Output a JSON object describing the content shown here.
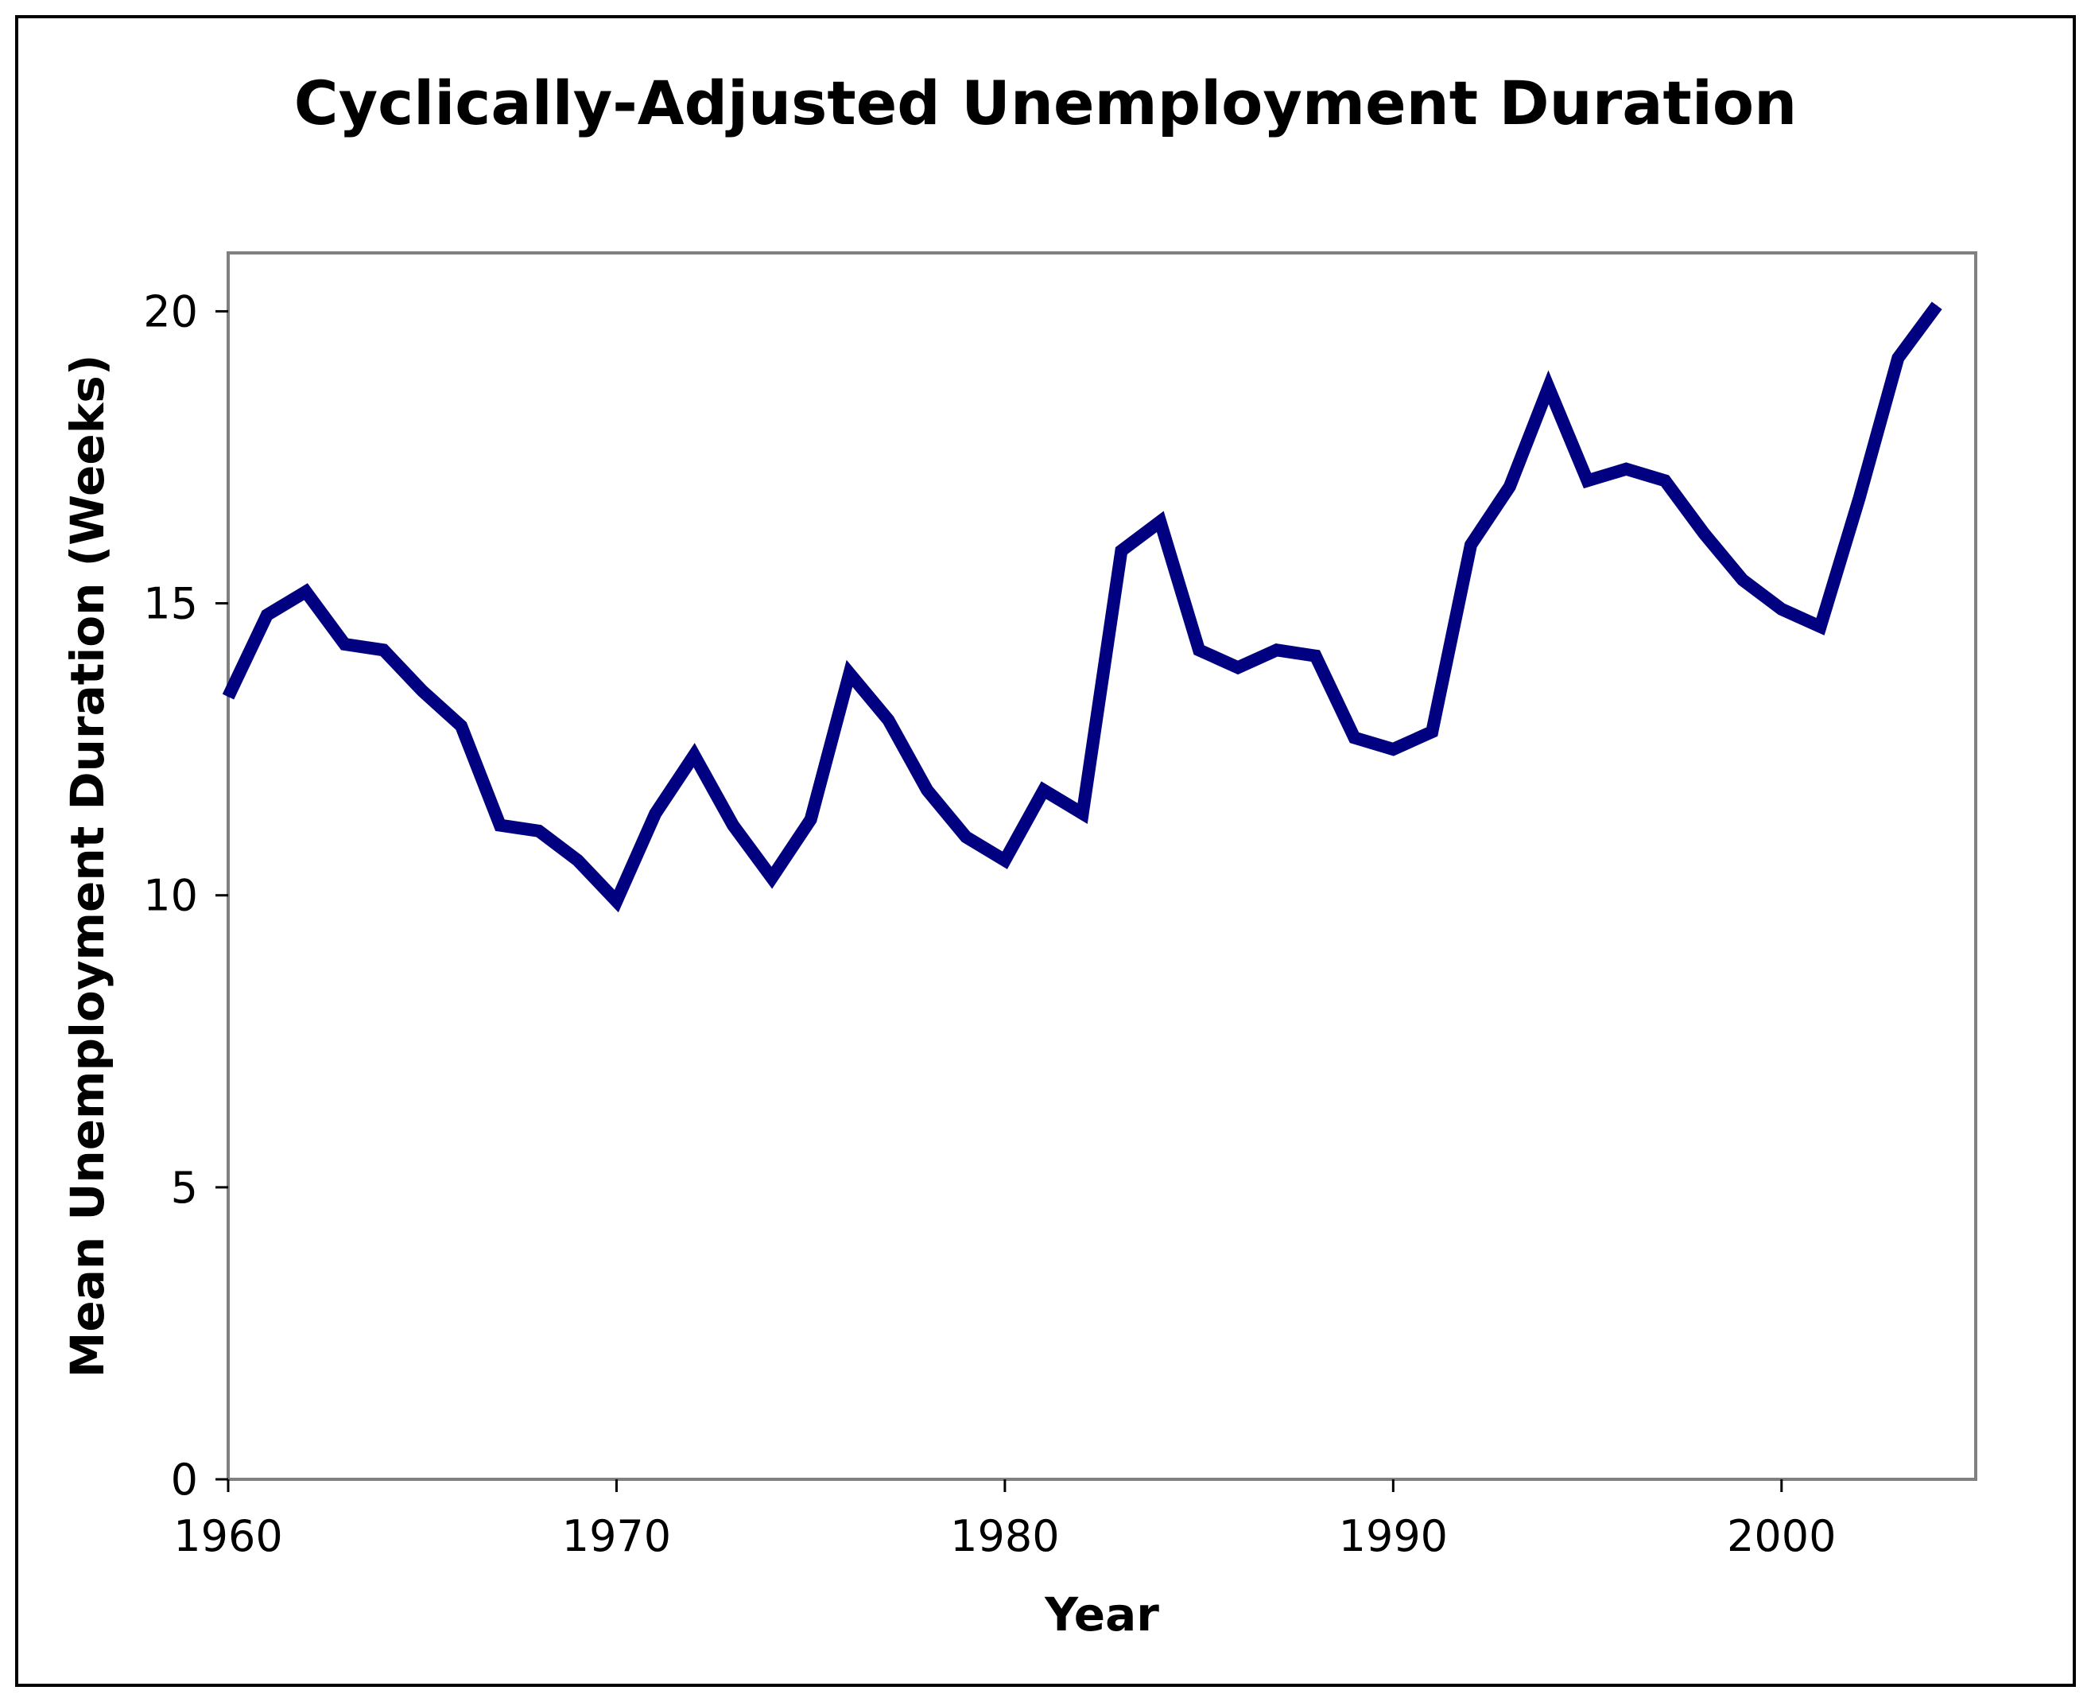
{
  "chart_data": {
    "type": "line",
    "title": "Cyclically-Adjusted Unemployment Duration",
    "xlabel": "Year",
    "ylabel": "Mean Unemployment Duration (Weeks)",
    "xlim": [
      1960,
      2005
    ],
    "ylim": [
      0,
      21
    ],
    "x_ticks": [
      1960,
      1970,
      1980,
      1990,
      2000
    ],
    "y_ticks": [
      0,
      5,
      10,
      15,
      20
    ],
    "grid": false,
    "legend": "none",
    "series": [
      {
        "color": "#000080",
        "x": [
          1960,
          1961,
          1962,
          1963,
          1964,
          1965,
          1966,
          1967,
          1968,
          1969,
          1970,
          1971,
          1972,
          1973,
          1974,
          1975,
          1976,
          1977,
          1978,
          1979,
          1980,
          1981,
          1982,
          1983,
          1984,
          1985,
          1986,
          1987,
          1988,
          1989,
          1990,
          1991,
          1992,
          1993,
          1994,
          1995,
          1996,
          1997,
          1998,
          1999,
          2000,
          2001,
          2002,
          2003,
          2004
        ],
        "y": [
          13.4,
          14.8,
          15.2,
          14.3,
          14.2,
          13.5,
          12.9,
          11.2,
          11.1,
          10.6,
          9.9,
          11.4,
          12.4,
          11.2,
          10.3,
          11.3,
          13.8,
          13.0,
          11.8,
          11.0,
          10.6,
          11.8,
          11.4,
          15.9,
          16.4,
          14.2,
          13.9,
          14.2,
          14.1,
          12.7,
          12.5,
          12.8,
          16.0,
          17.0,
          18.7,
          17.1,
          17.3,
          17.1,
          16.2,
          15.4,
          14.9,
          14.6,
          16.8,
          19.2,
          20.1
        ]
      }
    ]
  }
}
